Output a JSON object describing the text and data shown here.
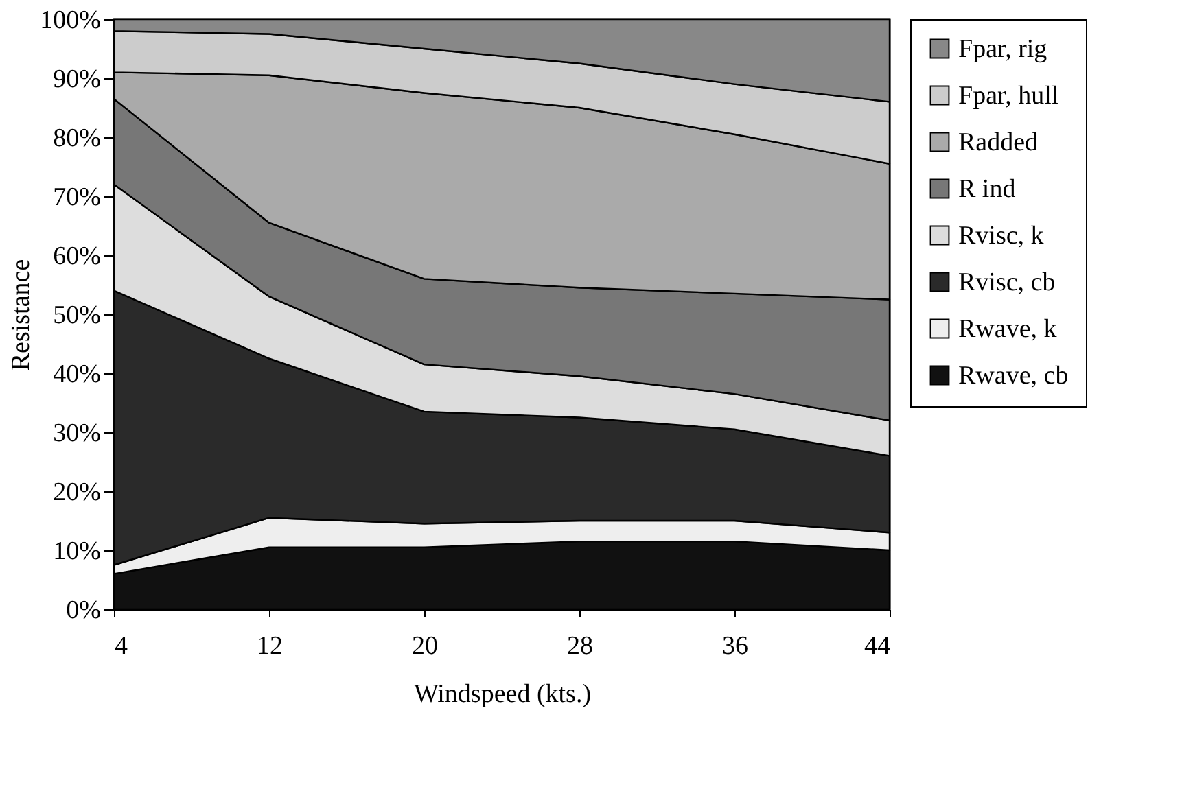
{
  "chart_data": {
    "type": "area",
    "stacked": true,
    "xlabel": "Windspeed (kts.)",
    "ylabel": "Resistance",
    "x": [
      4,
      12,
      20,
      28,
      36,
      44
    ],
    "xlim": [
      4,
      44
    ],
    "xticks": [
      4,
      12,
      20,
      28,
      36,
      44
    ],
    "ylim": [
      0,
      100
    ],
    "yticks": [
      {
        "value": 0,
        "label": "0%"
      },
      {
        "value": 10,
        "label": "10%"
      },
      {
        "value": 20,
        "label": "20%"
      },
      {
        "value": 30,
        "label": "30%"
      },
      {
        "value": 40,
        "label": "40%"
      },
      {
        "value": 50,
        "label": "50%"
      },
      {
        "value": 60,
        "label": "60%"
      },
      {
        "value": 70,
        "label": "70%"
      },
      {
        "value": 80,
        "label": "80%"
      },
      {
        "value": 90,
        "label": "90%"
      },
      {
        "value": 100,
        "label": "100%"
      }
    ],
    "grid": false,
    "legend": "right",
    "series": [
      {
        "name": "Rwave, cb",
        "color": "#111111",
        "values": [
          6,
          10.5,
          10.5,
          11.5,
          11.5,
          10
        ]
      },
      {
        "name": "Rwave, k",
        "color": "#eeeeee",
        "values": [
          1.5,
          5,
          4,
          3.5,
          3.5,
          3
        ]
      },
      {
        "name": "Rvisc, cb",
        "color": "#2a2a2a",
        "values": [
          46.5,
          27,
          19,
          17.5,
          15.5,
          13
        ]
      },
      {
        "name": "Rvisc, k",
        "color": "#dddddd",
        "values": [
          18,
          10.5,
          8,
          7,
          6,
          6
        ]
      },
      {
        "name": "R ind",
        "color": "#777777",
        "values": [
          14.5,
          12.5,
          14.5,
          15,
          17,
          20.5
        ]
      },
      {
        "name": "Radded",
        "color": "#aaaaaa",
        "values": [
          4.5,
          25,
          31.5,
          30.5,
          27,
          23
        ]
      },
      {
        "name": "Fpar, hull",
        "color": "#cccccc",
        "values": [
          7,
          7,
          7.5,
          7.5,
          8.5,
          10.5
        ]
      },
      {
        "name": "Fpar, rig",
        "color": "#888888",
        "values": [
          2,
          2.5,
          5,
          7.5,
          11,
          14
        ]
      }
    ]
  }
}
